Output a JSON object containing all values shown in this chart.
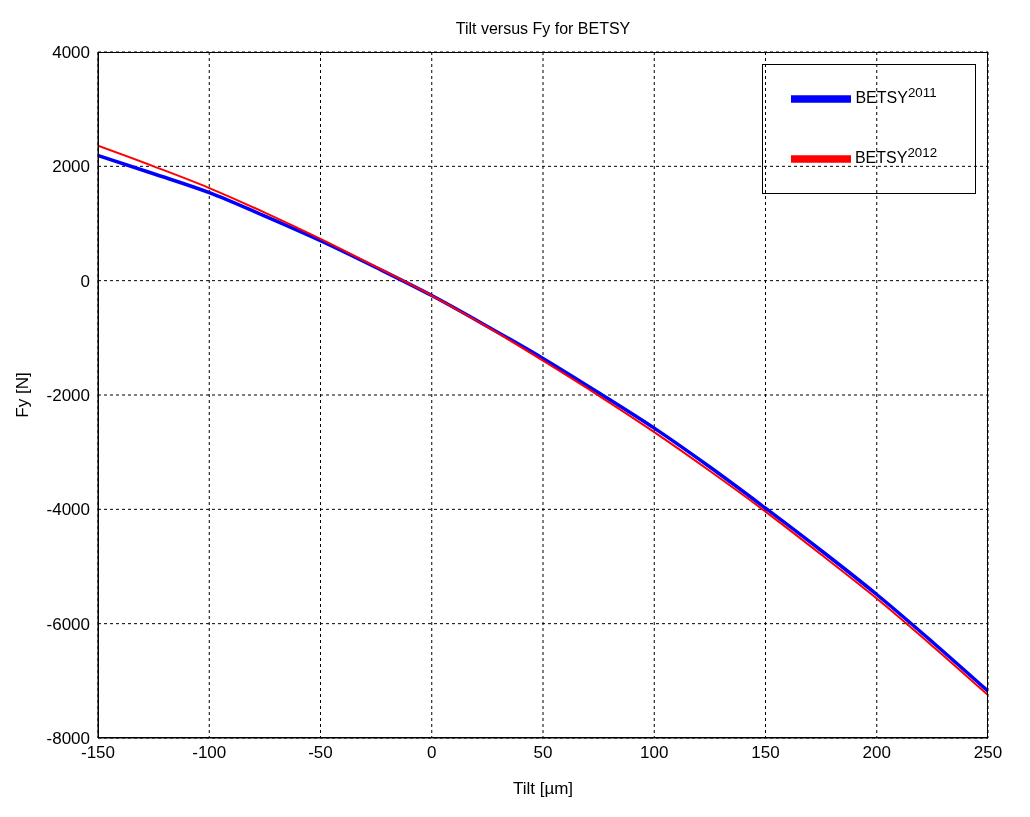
{
  "chart_data": {
    "type": "line",
    "title": "Tilt versus Fy for BETSY",
    "xlabel": "Tilt [µm]",
    "ylabel": "Fy [N]",
    "x": [
      -150,
      -125,
      -100,
      -75,
      -50,
      -25,
      0,
      25,
      50,
      75,
      100,
      125,
      150,
      175,
      200,
      225,
      250
    ],
    "series": [
      {
        "name": "BETSY$^{2011}$",
        "color": "#0000ff",
        "values": [
          2190,
          1870,
          1540,
          1130,
          700,
          230,
          -260,
          -800,
          -1360,
          -1960,
          -2580,
          -3260,
          -3980,
          -4720,
          -5490,
          -6320,
          -7180
        ]
      },
      {
        "name": "BETSY$^{2012}$",
        "color": "#ff0000",
        "values": [
          2360,
          2000,
          1620,
          1190,
          730,
          240,
          -260,
          -810,
          -1400,
          -2010,
          -2650,
          -3330,
          -4040,
          -4790,
          -5560,
          -6390,
          -7250
        ]
      }
    ],
    "xlim": [
      -150,
      250
    ],
    "xticks": [
      -150,
      -100,
      -50,
      0,
      50,
      100,
      150,
      200,
      250
    ],
    "ylim": [
      -8000,
      4000
    ],
    "yticks": [
      -8000,
      -6000,
      -4000,
      -2000,
      0,
      2000,
      4000
    ],
    "grid": true,
    "legend": "top right",
    "marker": "none",
    "line_style": "solid"
  }
}
